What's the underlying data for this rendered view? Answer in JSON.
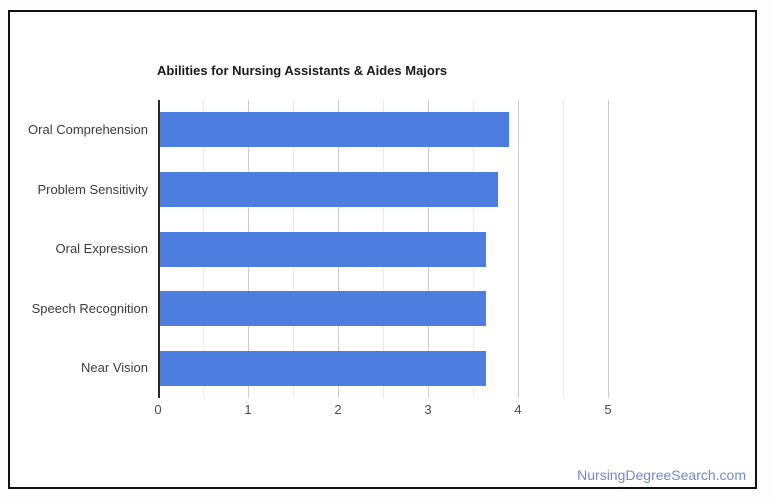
{
  "page": {
    "background": "#fdfdfd"
  },
  "card": {
    "border_color": "#111111",
    "background": "#ffffff"
  },
  "footer": {
    "text": "NursingDegreeSearch.com",
    "color": "#7289c7"
  },
  "chart_data": {
    "type": "bar",
    "orientation": "horizontal",
    "title": "Abilities for Nursing Assistants & Aides Majors",
    "categories": [
      "Oral Comprehension",
      "Problem Sensitivity",
      "Oral Expression",
      "Speech Recognition",
      "Near Vision"
    ],
    "values": [
      3.88,
      3.75,
      3.62,
      3.62,
      3.62
    ],
    "xlabel": "",
    "ylabel": "",
    "xlim": [
      0,
      5
    ],
    "x_ticks": [
      0,
      1,
      2,
      3,
      4,
      5
    ],
    "minor_tick_step": 0.5,
    "grid": true,
    "legend": "none",
    "bar_color": "#4e7de0",
    "axis_color": "#2b2b2b",
    "title_color": "#1b1b1b",
    "label_color": "#3c3c3c",
    "tick_label_color": "#4a4a4a"
  }
}
